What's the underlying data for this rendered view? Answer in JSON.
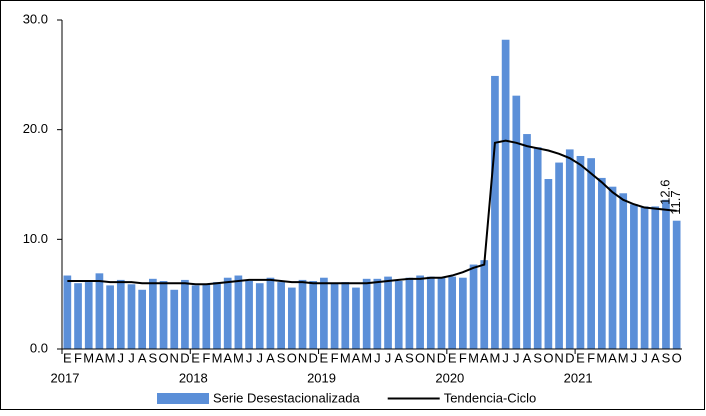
{
  "chart_data": {
    "type": "bar-line",
    "categories": [
      "E",
      "F",
      "M",
      "A",
      "M",
      "J",
      "J",
      "A",
      "S",
      "O",
      "N",
      "D",
      "E",
      "F",
      "M",
      "A",
      "M",
      "J",
      "J",
      "A",
      "S",
      "O",
      "N",
      "D",
      "E",
      "F",
      "M",
      "A",
      "M",
      "J",
      "J",
      "A",
      "S",
      "O",
      "N",
      "D",
      "E",
      "F",
      "M",
      "A",
      "M",
      "J",
      "J",
      "A",
      "S",
      "O",
      "N",
      "D",
      "E",
      "F",
      "M",
      "A",
      "M",
      "J",
      "J",
      "A",
      "S",
      "O"
    ],
    "year_labels": [
      "2017",
      "2018",
      "2019",
      "2020",
      "2021"
    ],
    "series": [
      {
        "name": "Serie Desestacionalizada",
        "color": "#5b8fd8",
        "kind": "bar",
        "values": [
          6.7,
          6.0,
          6.1,
          6.9,
          5.8,
          6.3,
          5.9,
          5.4,
          6.4,
          6.2,
          5.4,
          6.3,
          5.8,
          5.9,
          6.1,
          6.5,
          6.7,
          6.2,
          6.0,
          6.5,
          6.1,
          5.6,
          6.3,
          6.2,
          6.5,
          6.0,
          6.1,
          5.6,
          6.4,
          6.4,
          6.6,
          6.2,
          6.5,
          6.7,
          6.6,
          6.5,
          6.6,
          6.5,
          7.7,
          8.1,
          24.9,
          28.2,
          23.1,
          19.6,
          18.4,
          15.5,
          17.0,
          18.2,
          17.6,
          17.4,
          15.6,
          14.8,
          14.2,
          13.2,
          13.0,
          13.0,
          13.6,
          11.7
        ]
      },
      {
        "name": "Tendencia-Ciclo",
        "color": "#000000",
        "kind": "line",
        "values": [
          6.2,
          6.2,
          6.2,
          6.2,
          6.1,
          6.1,
          6.1,
          6.0,
          6.0,
          6.0,
          6.0,
          6.0,
          5.9,
          5.9,
          6.0,
          6.1,
          6.2,
          6.3,
          6.3,
          6.3,
          6.2,
          6.1,
          6.1,
          6.0,
          6.0,
          6.0,
          6.0,
          6.0,
          6.0,
          6.1,
          6.2,
          6.3,
          6.4,
          6.4,
          6.5,
          6.5,
          6.7,
          7.0,
          7.4,
          7.7,
          18.8,
          19.0,
          18.8,
          18.5,
          18.3,
          18.1,
          17.8,
          17.4,
          16.8,
          16.0,
          15.2,
          14.3,
          13.6,
          13.2,
          12.9,
          12.8,
          12.7,
          12.6
        ]
      }
    ],
    "label_last": true,
    "ylim": [
      0,
      30
    ],
    "yticks": [
      {
        "value": 0,
        "label": "0.0"
      },
      {
        "value": 10,
        "label": "10.0"
      },
      {
        "value": 20,
        "label": "20.0"
      },
      {
        "value": 30,
        "label": "30.0"
      }
    ],
    "legend": "bottom"
  }
}
